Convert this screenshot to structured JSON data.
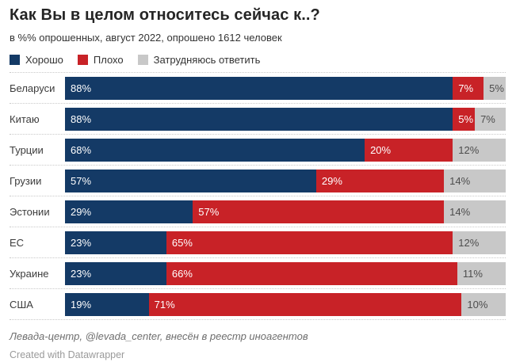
{
  "chart_data": {
    "type": "bar",
    "variant": "stacked-horizontal",
    "title": "Как Вы в целом относитесь сейчас к..?",
    "subtitle": "в %% опрошенных, август 2022, опрошено 1612 человек",
    "source_note": "Левада-центр, @levada_center, внесён в реестр иноагентов",
    "unit": "%",
    "xlim": [
      0,
      100
    ],
    "grid": false,
    "legend_position": "top",
    "row_separator": "dotted",
    "categories": [
      "Беларуси",
      "Китаю",
      "Турции",
      "Грузии",
      "Эстонии",
      "ЕС",
      "Украине",
      "США"
    ],
    "series": [
      {
        "name": "Хорошо",
        "color": "#143a66",
        "label_color": "#ffffff",
        "values": [
          88,
          88,
          68,
          57,
          29,
          23,
          23,
          19
        ]
      },
      {
        "name": "Плохо",
        "color": "#c82227",
        "label_color": "#ffffff",
        "values": [
          7,
          5,
          20,
          29,
          57,
          65,
          66,
          71
        ]
      },
      {
        "name": "Затрудняюсь ответить",
        "color": "#c8c8c8",
        "label_color": "#4d4d4d",
        "values": [
          5,
          7,
          12,
          14,
          14,
          12,
          11,
          10
        ]
      }
    ]
  },
  "footer": {
    "credit": "Created with Datawrapper"
  }
}
